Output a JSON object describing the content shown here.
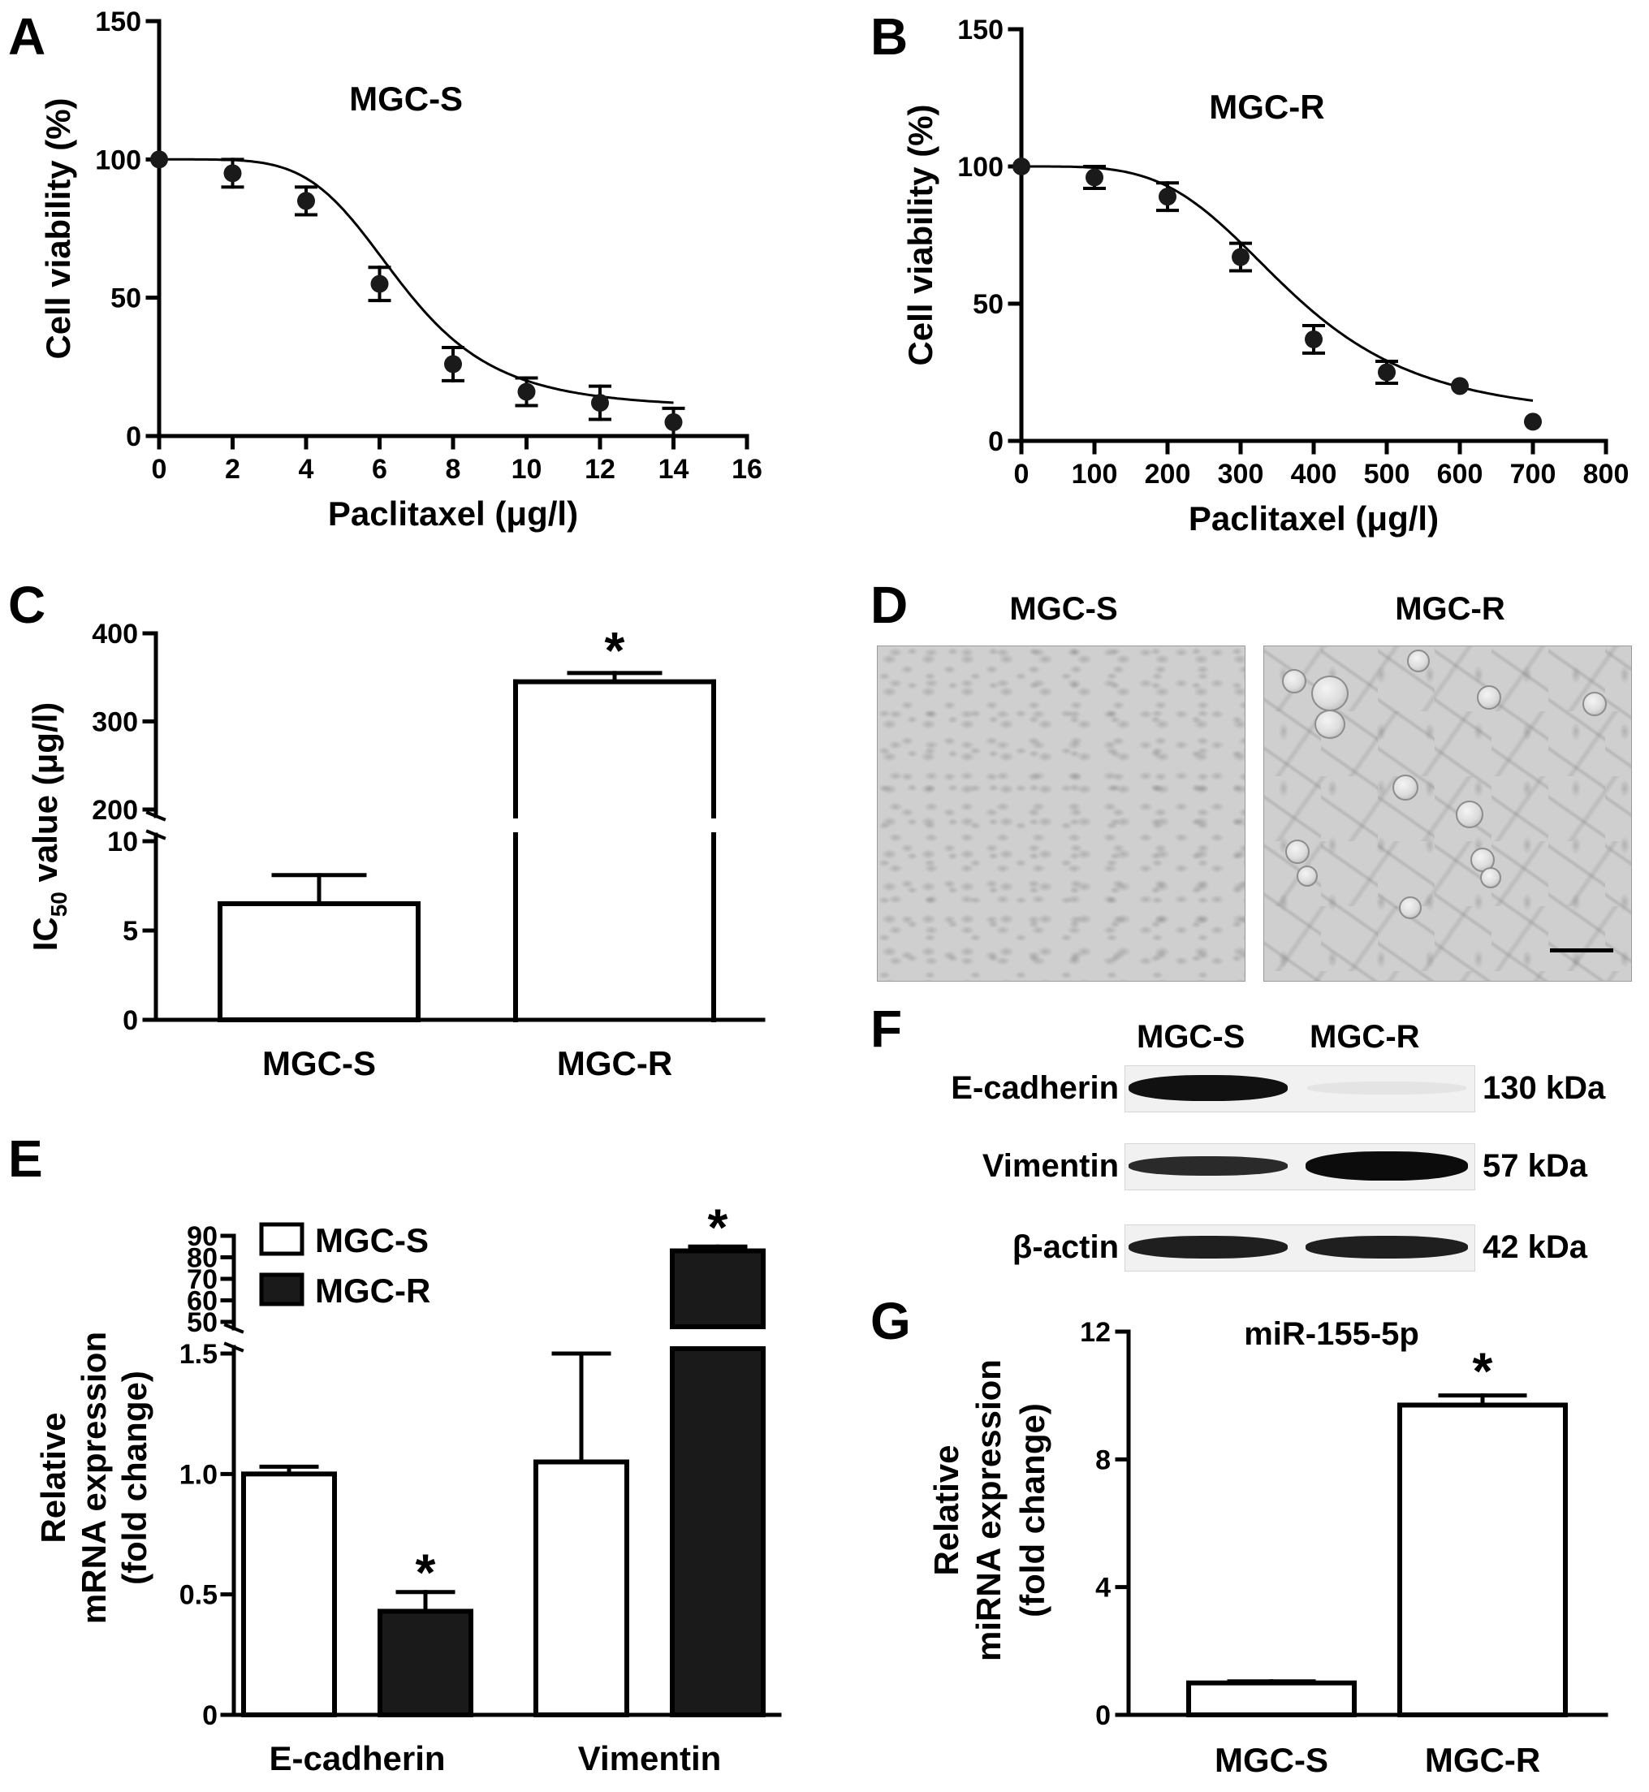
{
  "panel_letters": [
    "A",
    "B",
    "C",
    "D",
    "E",
    "F",
    "G"
  ],
  "chart_data": [
    {
      "id": "A",
      "type": "line",
      "title": "MGC-S",
      "xlabel": "Paclitaxel (μg/l)",
      "ylabel": "Cell viability (%)",
      "xlim": [
        0,
        16
      ],
      "ylim": [
        0,
        150
      ],
      "xticks": [
        0,
        2,
        4,
        6,
        8,
        10,
        12,
        14,
        16
      ],
      "yticks": [
        0,
        50,
        100,
        150
      ],
      "series": [
        {
          "x": [
            0,
            2,
            4,
            6,
            8,
            10,
            12,
            14
          ],
          "y": [
            100,
            95,
            85,
            55,
            26,
            16,
            12,
            5
          ],
          "err": [
            0,
            5,
            5,
            6,
            6,
            5,
            6,
            5
          ]
        }
      ],
      "fit": {
        "top": 100,
        "bottom": 10,
        "ec50": 6.6,
        "hill": 5
      }
    },
    {
      "id": "B",
      "type": "line",
      "title": "MGC-R",
      "xlabel": "Paclitaxel (μg/l)",
      "ylabel": "Cell viability (%)",
      "xlim": [
        0,
        800
      ],
      "ylim": [
        0,
        150
      ],
      "xticks": [
        0,
        100,
        200,
        300,
        400,
        500,
        600,
        700,
        800
      ],
      "yticks": [
        0,
        50,
        100,
        150
      ],
      "series": [
        {
          "x": [
            0,
            100,
            200,
            300,
            400,
            500,
            600,
            700
          ],
          "y": [
            100,
            96,
            89,
            67,
            37,
            25,
            20,
            7
          ],
          "err": [
            0,
            4,
            5,
            5,
            5,
            4,
            0,
            0
          ]
        }
      ],
      "fit": {
        "top": 100,
        "bottom": 8,
        "ec50": 370,
        "hill": 4
      }
    },
    {
      "id": "C",
      "type": "bar",
      "ylabel_main": "IC",
      "ylabel_sub": "50",
      "ylabel_rest": " value (μg/l)",
      "categories": [
        "MGC-S",
        "MGC-R"
      ],
      "values": [
        6.5,
        345
      ],
      "errors": [
        1.6,
        10
      ],
      "upper_axis": {
        "range": [
          200,
          400
        ],
        "ticks": [
          200,
          300,
          400
        ]
      },
      "lower_axis": {
        "range": [
          0,
          10
        ],
        "ticks": [
          0,
          5,
          10
        ]
      },
      "significance": [
        "",
        "*"
      ]
    },
    {
      "id": "E",
      "type": "bar",
      "ylabel": [
        "Relative",
        "mRNA expression",
        "(fold change)"
      ],
      "categories": [
        "E-cadherin",
        "Vimentin"
      ],
      "series": [
        {
          "name": "MGC-S",
          "color": "#ffffff",
          "values": [
            1.0,
            1.05
          ],
          "errors": [
            0.03,
            0.45
          ]
        },
        {
          "name": "MGC-R",
          "color": "#1a1a1a",
          "values": [
            0.43,
            83
          ],
          "errors": [
            0.08,
            2
          ]
        }
      ],
      "upper_axis": {
        "range": [
          50,
          90
        ],
        "ticks": [
          50,
          60,
          70,
          80,
          90
        ]
      },
      "lower_axis": {
        "range": [
          0,
          1.5
        ],
        "ticks": [
          "0",
          "0.5",
          "1.0",
          "1.5"
        ]
      },
      "significance": {
        "MGC-R": [
          "*",
          "*"
        ]
      }
    },
    {
      "id": "G",
      "type": "bar",
      "title": "miR-155-5p",
      "ylabel": [
        "Relative",
        "miRNA expression",
        "(fold change)"
      ],
      "categories": [
        "MGC-S",
        "MGC-R"
      ],
      "values": [
        1.0,
        9.7
      ],
      "errors": [
        0.05,
        0.3
      ],
      "ylim": [
        0,
        12
      ],
      "yticks": [
        0,
        4,
        8,
        12
      ],
      "significance": [
        "",
        "*"
      ]
    }
  ],
  "panel_d": {
    "labels": [
      "MGC-S",
      "MGC-R"
    ]
  },
  "panel_f": {
    "lanes": [
      "MGC-S",
      "MGC-R"
    ],
    "rows": [
      {
        "protein": "E-cadherin",
        "size": "130 kDa",
        "intensity": [
          1.0,
          0.05
        ]
      },
      {
        "protein": "Vimentin",
        "size": "57 kDa",
        "intensity": [
          0.75,
          1.0
        ]
      },
      {
        "protein": "β-actin",
        "size": "42 kDa",
        "intensity": [
          0.85,
          0.85
        ]
      }
    ]
  }
}
